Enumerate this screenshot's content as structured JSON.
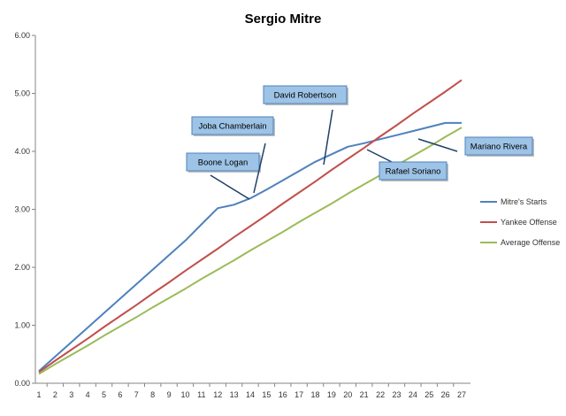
{
  "chart_data": {
    "type": "line",
    "title": "Sergio Mitre",
    "xlabel": "",
    "ylabel": "",
    "x": [
      1,
      2,
      3,
      4,
      5,
      6,
      7,
      8,
      9,
      10,
      11,
      12,
      13,
      14,
      15,
      16,
      17,
      18,
      19,
      20,
      21,
      22,
      23,
      24,
      25,
      26,
      27
    ],
    "ylim": [
      0,
      6
    ],
    "y_ticks": [
      "0.00",
      "1.00",
      "2.00",
      "3.00",
      "4.00",
      "5.00",
      "6.00"
    ],
    "grid": false,
    "legend_position": "right",
    "series": [
      {
        "name": "Mitre's Starts",
        "color": "#4F81BD",
        "values": [
          0.21,
          0.46,
          0.71,
          0.96,
          1.21,
          1.46,
          1.71,
          1.96,
          2.21,
          2.46,
          2.74,
          3.02,
          3.08,
          3.19,
          3.34,
          3.5,
          3.66,
          3.82,
          3.95,
          4.08,
          4.14,
          4.21,
          4.28,
          4.35,
          4.42,
          4.49,
          4.49
        ]
      },
      {
        "name": "Yankee Offense",
        "color": "#C0504D",
        "values": [
          0.19,
          0.39,
          0.58,
          0.77,
          0.97,
          1.16,
          1.35,
          1.55,
          1.74,
          1.94,
          2.13,
          2.32,
          2.52,
          2.71,
          2.9,
          3.1,
          3.29,
          3.48,
          3.68,
          3.87,
          4.06,
          4.26,
          4.45,
          4.65,
          4.84,
          5.03,
          5.23
        ]
      },
      {
        "name": "Average Offense",
        "color": "#9BBB59",
        "values": [
          0.16,
          0.33,
          0.49,
          0.65,
          0.82,
          0.98,
          1.14,
          1.31,
          1.47,
          1.63,
          1.8,
          1.96,
          2.12,
          2.29,
          2.45,
          2.61,
          2.78,
          2.94,
          3.1,
          3.27,
          3.43,
          3.59,
          3.76,
          3.92,
          4.08,
          4.25,
          4.41
        ]
      }
    ],
    "annotations": [
      {
        "text": "Boone Logan"
      },
      {
        "text": "Joba Chamberlain"
      },
      {
        "text": "David Robertson"
      },
      {
        "text": "Rafael Soriano"
      },
      {
        "text": "Mariano Rivera"
      }
    ]
  }
}
